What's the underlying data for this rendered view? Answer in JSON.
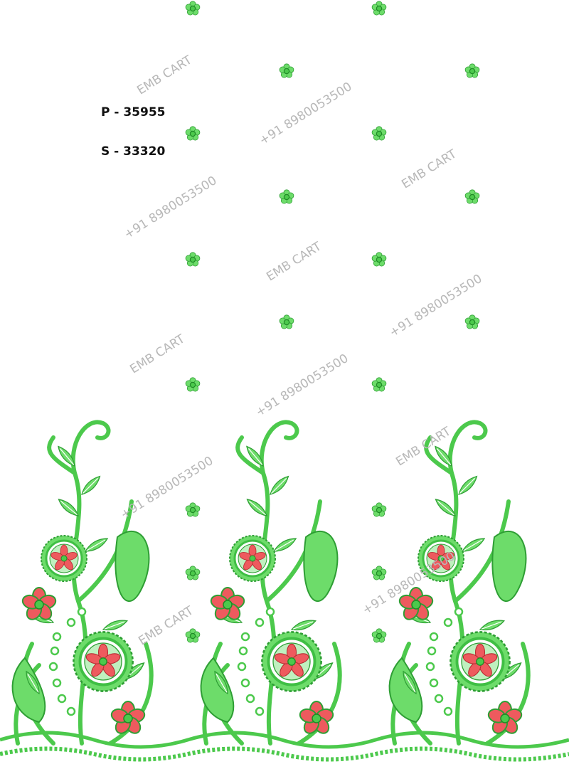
{
  "design": {
    "codes": [
      {
        "label": "P - 35955"
      },
      {
        "label": "S - 33320"
      }
    ],
    "watermarks": {
      "brand": "EMB CART",
      "phone": "+91 8980053500"
    },
    "colors": {
      "background": "#ffffff",
      "thread_green": "#5fd35f",
      "thread_dark_green": "#2e9e34",
      "thread_red": "#e8494f",
      "watermark": "#b8b8b8"
    },
    "motifs": [
      "small-flower-butti",
      "floral-border-motif"
    ]
  }
}
